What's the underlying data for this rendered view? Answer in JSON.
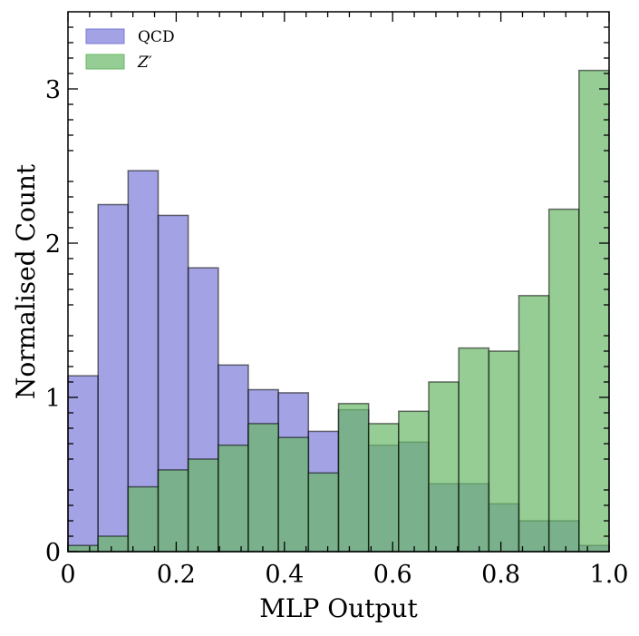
{
  "chart_data": {
    "type": "bar",
    "title": "",
    "xlabel": "MLP Output",
    "ylabel": "Normalised Count",
    "xlim": [
      0.0,
      1.0
    ],
    "ylim": [
      0.0,
      3.5
    ],
    "bin_edges": [
      0.0,
      0.0556,
      0.1111,
      0.1667,
      0.2222,
      0.2778,
      0.3333,
      0.3889,
      0.4444,
      0.5,
      0.5556,
      0.6111,
      0.6667,
      0.7222,
      0.7778,
      0.8333,
      0.8889,
      0.9444,
      1.0
    ],
    "x_ticks": [
      0.0,
      0.2,
      0.4,
      0.6,
      0.8,
      1.0
    ],
    "x_tick_labels": [
      "0",
      "0.2",
      "0.4",
      "0.6",
      "0.8",
      "1.0"
    ],
    "y_ticks": [
      0,
      1,
      2,
      3
    ],
    "y_tick_labels": [
      "0",
      "1",
      "2",
      "3"
    ],
    "grid": false,
    "legend_position": "top-left",
    "series": [
      {
        "name": "QCD",
        "color": "#7b7bd9",
        "values": [
          1.14,
          2.25,
          2.47,
          2.18,
          1.84,
          1.21,
          1.05,
          1.03,
          0.78,
          0.92,
          0.69,
          0.71,
          0.44,
          0.44,
          0.31,
          0.2,
          0.2,
          0.04
        ]
      },
      {
        "name": "Z′",
        "color": "#6ab866",
        "values": [
          0.04,
          0.1,
          0.42,
          0.53,
          0.6,
          0.69,
          0.83,
          0.74,
          0.51,
          0.96,
          0.83,
          0.91,
          1.1,
          1.32,
          1.3,
          1.66,
          2.22,
          3.12
        ]
      }
    ]
  }
}
